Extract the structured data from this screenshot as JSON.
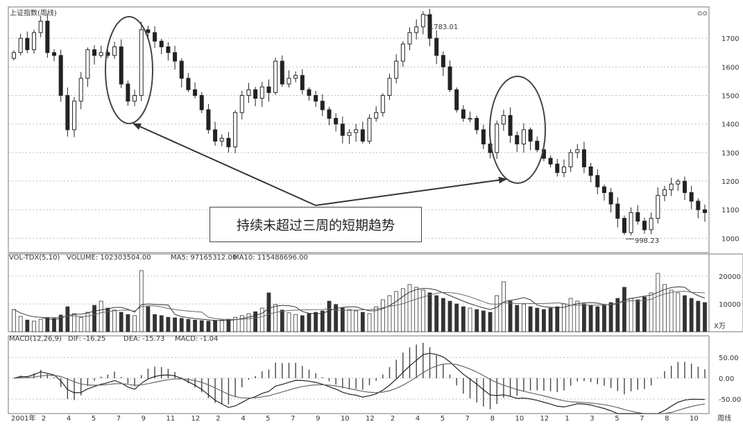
{
  "window_title": "上证指数(周线)",
  "chart_data": [
    {
      "type": "candlestick",
      "title": "上证指数(周线)",
      "ylim": [
        950,
        1800
      ],
      "yticks": [
        1000,
        1100,
        1200,
        1300,
        1400,
        1500,
        1600,
        1700
      ],
      "annotations": {
        "high": "1783.01",
        "low": "998.23"
      },
      "path": [
        1650,
        1700,
        1660,
        1720,
        1760,
        1650,
        1640,
        1500,
        1380,
        1480,
        1560,
        1660,
        1640,
        1650,
        1640,
        1670,
        1540,
        1480,
        1500,
        1730,
        1720,
        1690,
        1670,
        1650,
        1620,
        1560,
        1520,
        1500,
        1450,
        1380,
        1340,
        1350,
        1320,
        1440,
        1500,
        1520,
        1490,
        1530,
        1510,
        1620,
        1540,
        1560,
        1570,
        1520,
        1500,
        1480,
        1450,
        1420,
        1400,
        1360,
        1370,
        1380,
        1340,
        1420,
        1440,
        1500,
        1560,
        1620,
        1680,
        1720,
        1740,
        1783,
        1700,
        1640,
        1600,
        1520,
        1450,
        1420,
        1420,
        1380,
        1330,
        1300,
        1400,
        1430,
        1360,
        1330,
        1380,
        1340,
        1310,
        1280,
        1260,
        1230,
        1250,
        1300,
        1310,
        1250,
        1220,
        1180,
        1160,
        1120,
        1070,
        1020,
        1090,
        1060,
        1030,
        1070,
        1150,
        1170,
        1190,
        1200,
        1160,
        1130,
        1100,
        1090
      ]
    },
    {
      "type": "bar",
      "title": "VOL-TDX(5,10)",
      "legend": [
        "VOLUME: 102303504.00",
        "MA5: 97165312.00",
        "MA10: 115488696.00"
      ],
      "ylim": [
        0,
        25000
      ],
      "yticks": [
        10000,
        20000
      ],
      "unit": "X万",
      "values": [
        8000,
        5500,
        4200,
        3800,
        4500,
        5000,
        4800,
        6000,
        9000,
        6500,
        5200,
        7000,
        9500,
        11000,
        8500,
        7800,
        7000,
        6200,
        5800,
        22000,
        9000,
        6200,
        5800,
        5200,
        5000,
        4800,
        4500,
        4200,
        4000,
        3800,
        3900,
        4200,
        4500,
        5200,
        5800,
        6500,
        7200,
        8500,
        14000,
        9800,
        7800,
        6800,
        6200,
        5800,
        6500,
        7000,
        7500,
        11000,
        9800,
        8500,
        8000,
        7500,
        7000,
        6500,
        9000,
        11500,
        13000,
        14500,
        15500,
        17000,
        16000,
        15000,
        14000,
        13000,
        12000,
        11000,
        10000,
        9000,
        8500,
        8000,
        7500,
        7000,
        13000,
        18000,
        11000,
        9500,
        10000,
        9000,
        8500,
        8000,
        8500,
        9000,
        10000,
        12000,
        11000,
        10000,
        9500,
        9000,
        9500,
        10500,
        12000,
        16000,
        12000,
        11500,
        12500,
        14000,
        21000,
        17000,
        15000,
        14000,
        13000,
        12000,
        11000,
        10500
      ]
    },
    {
      "type": "line",
      "title": "MACD(12,26,9)",
      "legend": [
        "DIF: -16.25",
        "DEA: -15.73",
        "MACD: -1.04"
      ],
      "ylim": [
        -85,
        85
      ],
      "yticks": [
        50.0,
        0.0,
        -50.0
      ],
      "ytick_labels": [
        "50.00",
        "0.00",
        "-50.00"
      ],
      "x_labels": [
        "2001年",
        "2",
        "4",
        "5",
        "7",
        "9",
        "11",
        "12",
        "2",
        "4",
        "5",
        "7",
        "9",
        "10",
        "12",
        "2",
        "4",
        "5",
        "7",
        "8",
        "10",
        "12",
        "1",
        "3",
        "5",
        "7",
        "8",
        "10"
      ],
      "x_unit": "周线"
    }
  ],
  "annotation_text": "持续未超过三周的短期趋势"
}
